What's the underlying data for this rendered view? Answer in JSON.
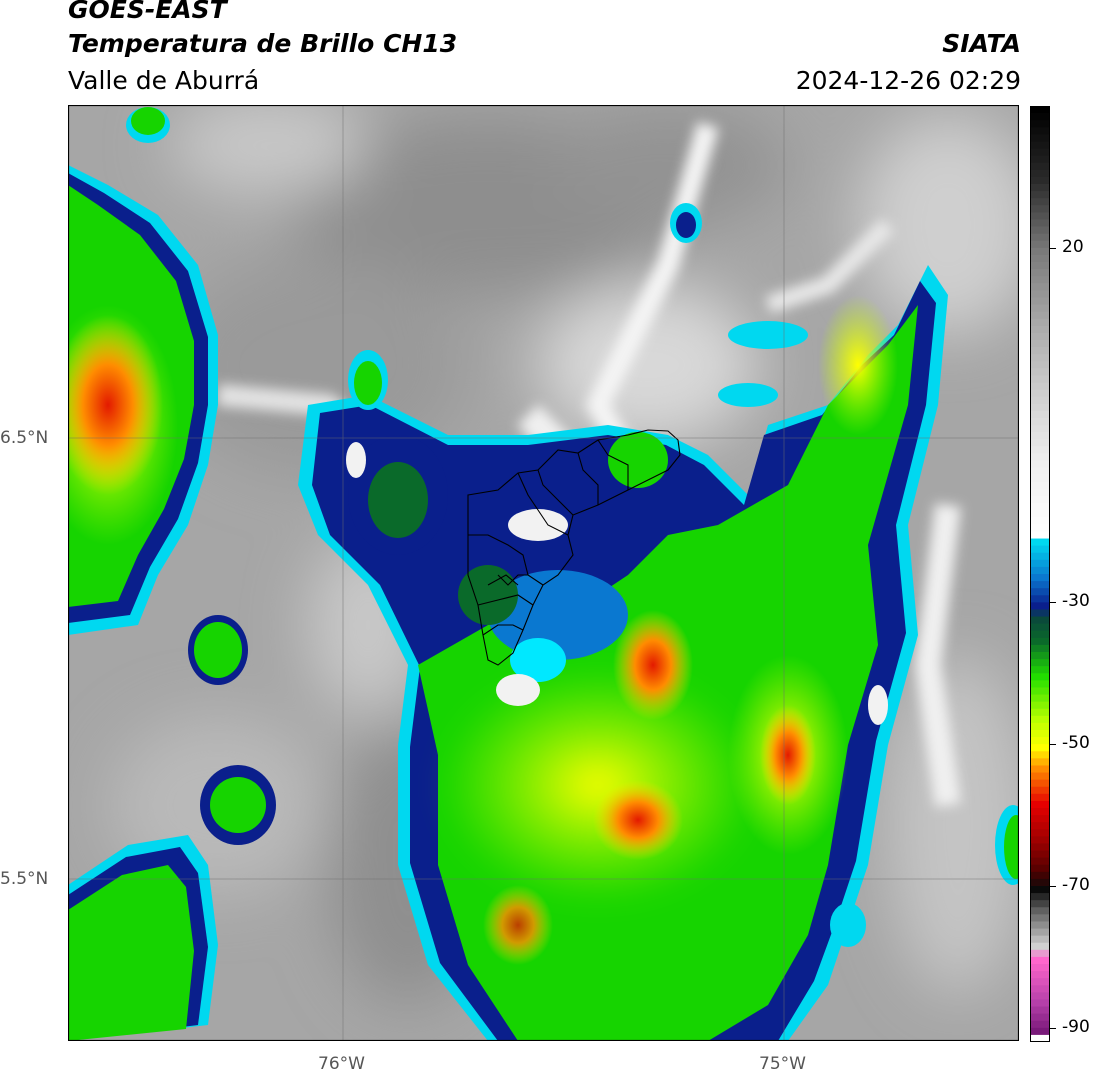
{
  "header": {
    "satellite": "GOES-EAST",
    "product": "Temperatura de Brillo CH13",
    "region": "Valle de Aburrá",
    "agency": "SIATA",
    "timestamp": "2024-12-26 02:29"
  },
  "map": {
    "lat_labels": [
      "6.5°N",
      "5.5°N"
    ],
    "lon_labels": [
      "76°W",
      "75°W"
    ],
    "lon_range": [
      -76.62,
      -74.47
    ],
    "lat_range": [
      5.12,
      7.24
    ]
  },
  "colorbar": {
    "tick_labels": [
      "20",
      "-30",
      "-50",
      "-70",
      "-90"
    ],
    "ticks": [
      20,
      -30,
      -50,
      -70,
      -90
    ],
    "range": [
      -92,
      40
    ],
    "colors": {
      "magenta": "#b53fa9",
      "dark_red": "#5a0000",
      "red": "#e60000",
      "orange": "#ff8c00",
      "yellow": "#ffff00",
      "green": "#22dd00",
      "dark_green": "#0a6a2a",
      "navy": "#0a1f8c",
      "blue": "#0a78d0",
      "cyan": "#00d8f0",
      "white": "#f2f2f2",
      "gray": "#9a9a9a",
      "black": "#0a0a0a"
    }
  }
}
